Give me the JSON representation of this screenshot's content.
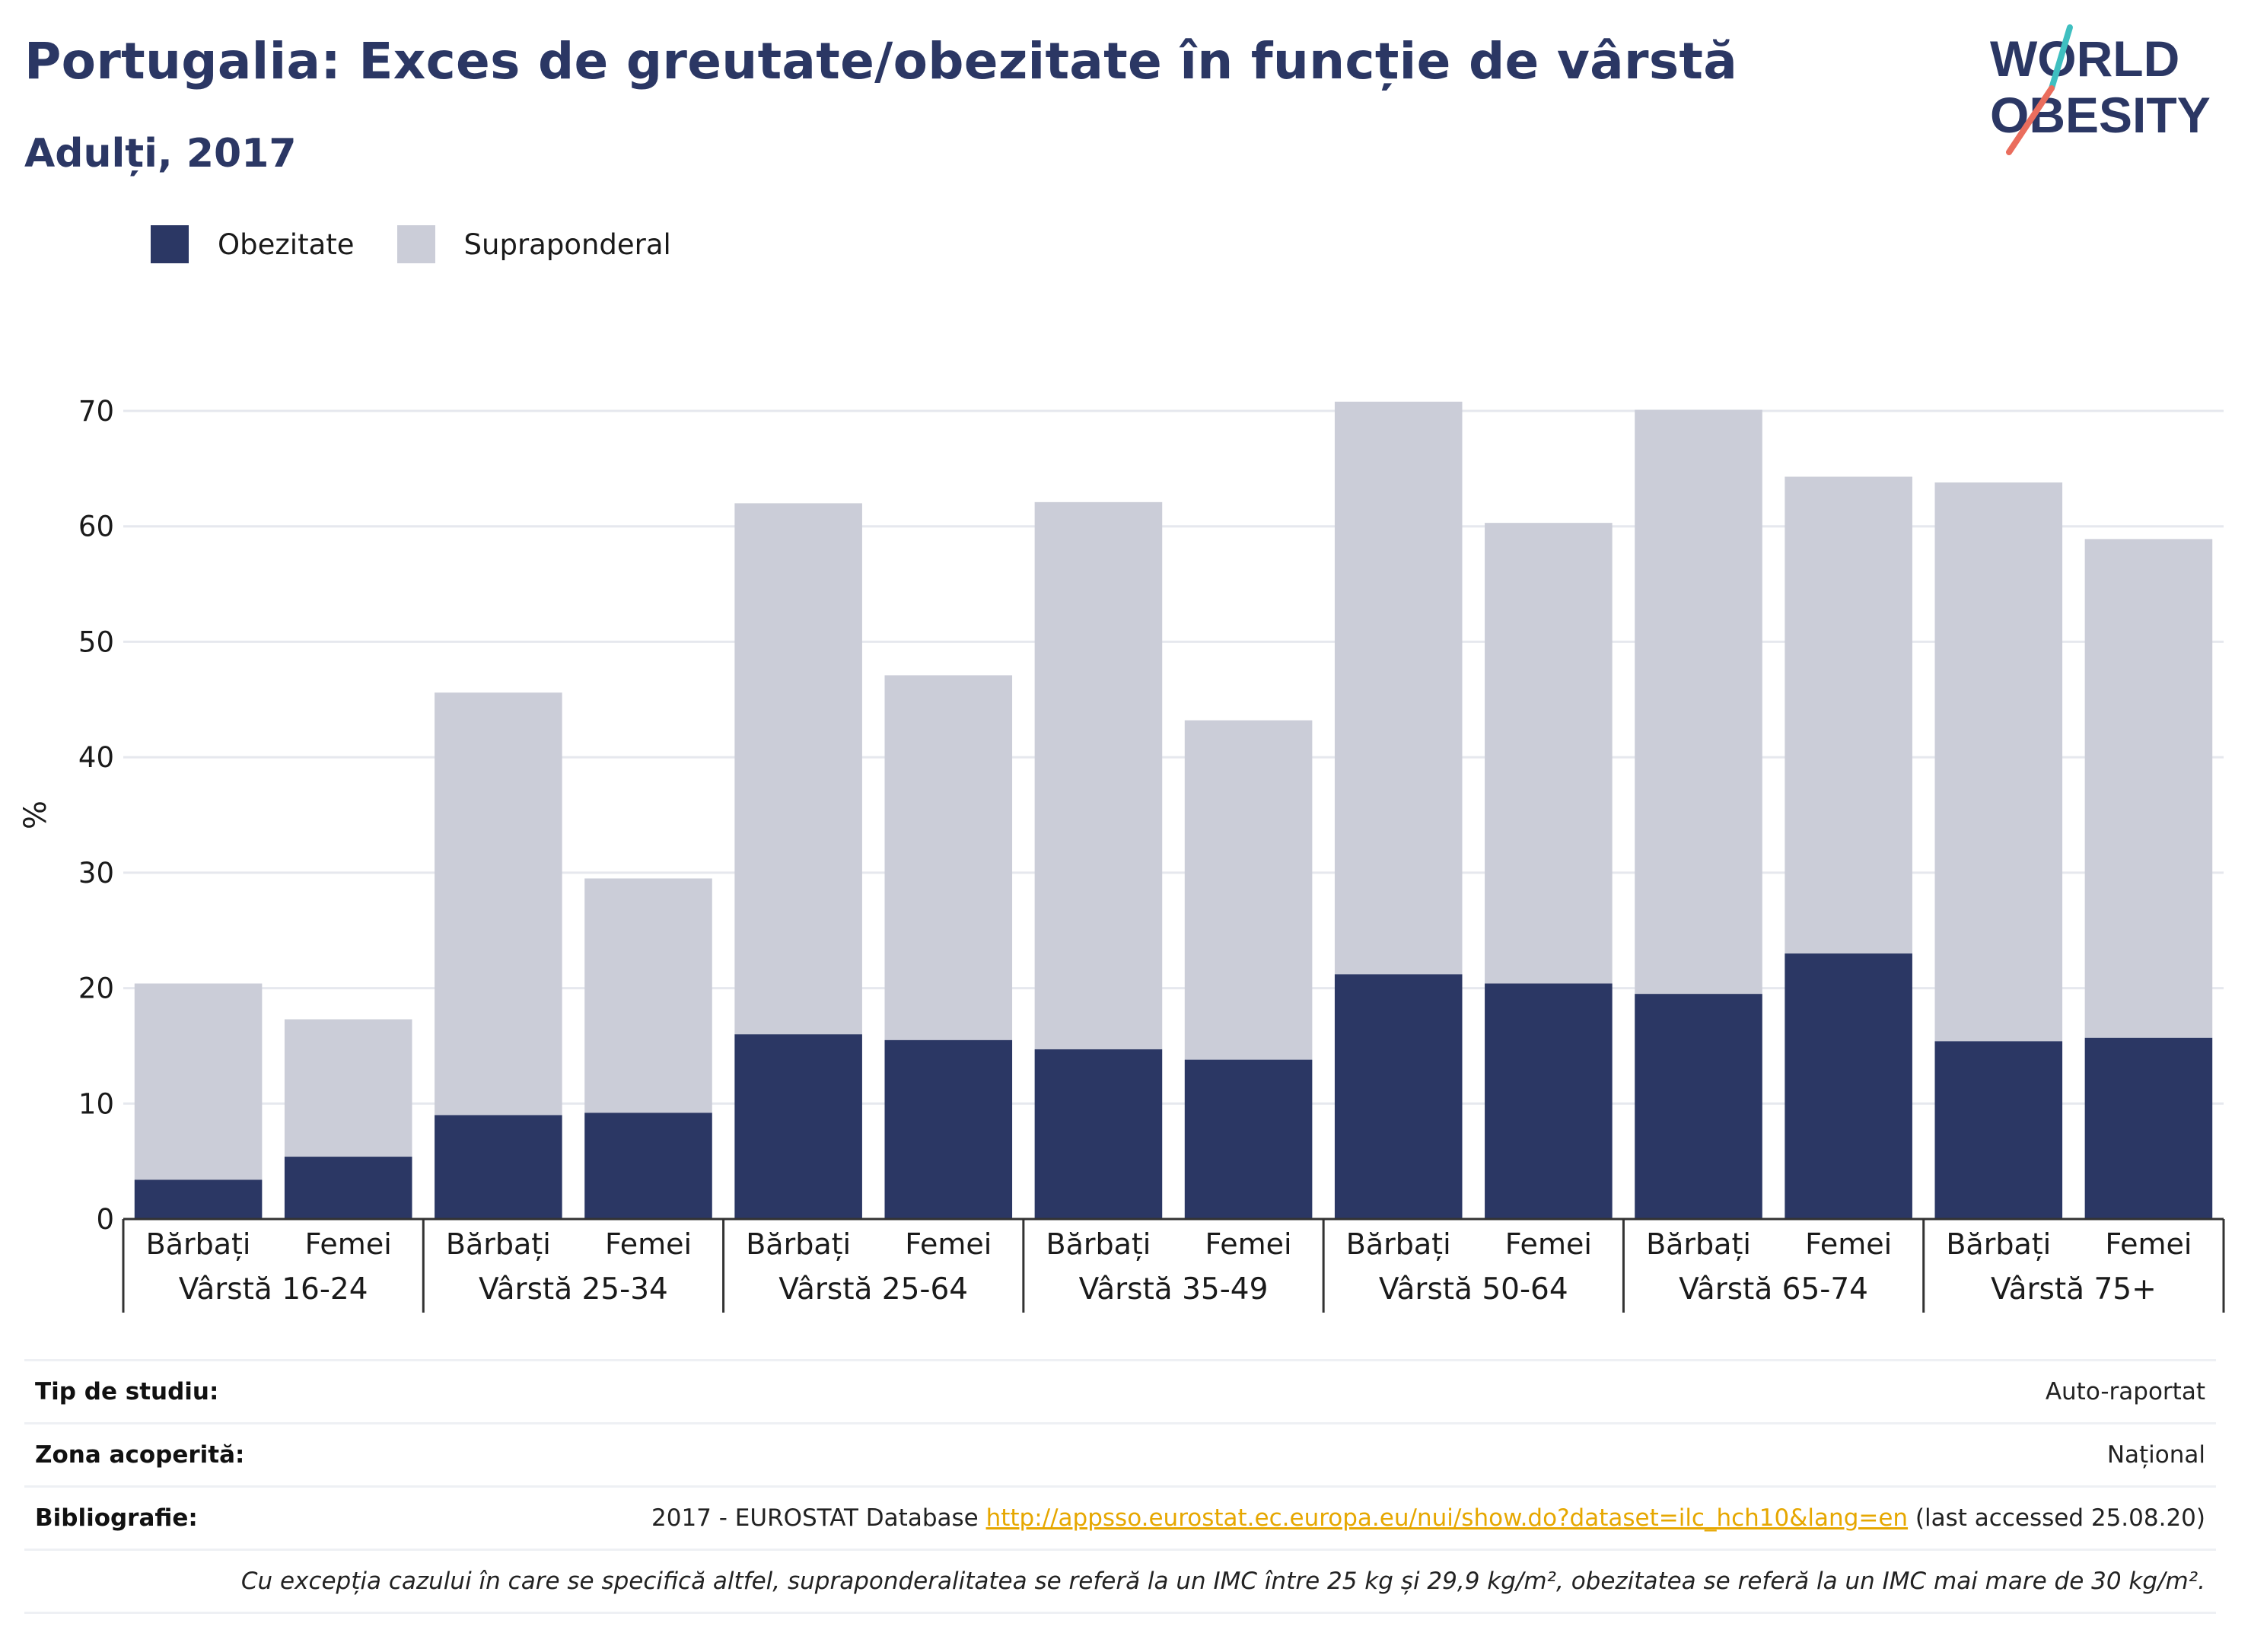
{
  "title": "Portugalia: Exces de greutate/obezitate în funcție de vârstă",
  "subtitle": "Adulți, 2017",
  "logo": {
    "line1": "WORLD",
    "line2": "OBESITY"
  },
  "colors": {
    "obesity": "#2b3764",
    "overweight": "#cbcdd8",
    "title": "#2b3764",
    "grid": "#e6e8ee",
    "link": "#e6a700"
  },
  "legend": [
    {
      "label": "Obezitate",
      "color": "#2b3764"
    },
    {
      "label": "Supraponderal",
      "color": "#cbcdd8"
    }
  ],
  "chart_data": {
    "type": "bar",
    "stacked": true,
    "ylabel": "%",
    "ylim": [
      0,
      70
    ],
    "yticks": [
      0,
      10,
      20,
      30,
      40,
      50,
      60,
      70
    ],
    "grid": true,
    "legend_position": "top-left",
    "groups": [
      "Vârstă 16-24",
      "Vârstă 25-34",
      "Vârstă 25-64",
      "Vârstă 35-49",
      "Vârstă 50-64",
      "Vârstă 65-74",
      "Vârstă 75+"
    ],
    "subcategories": [
      "Bărbați",
      "Femei"
    ],
    "categories": [
      "Bărbați",
      "Femei",
      "Bărbați",
      "Femei",
      "Bărbați",
      "Femei",
      "Bărbați",
      "Femei",
      "Bărbați",
      "Femei",
      "Bărbați",
      "Femei",
      "Bărbați",
      "Femei"
    ],
    "series": [
      {
        "name": "Obezitate",
        "values": [
          3.4,
          5.4,
          9.0,
          9.2,
          16.0,
          15.5,
          14.7,
          13.8,
          21.2,
          20.4,
          19.5,
          23.0,
          15.4,
          15.7
        ]
      },
      {
        "name": "Supraponderal",
        "values": [
          17.0,
          11.9,
          36.6,
          20.3,
          46.0,
          31.6,
          47.4,
          29.4,
          49.6,
          39.9,
          50.6,
          41.3,
          48.4,
          43.2
        ]
      }
    ]
  },
  "info": {
    "study_type_label": "Tip de studiu:",
    "study_type_value": "Auto-raportat",
    "coverage_label": "Zona acoperită:",
    "coverage_value": "Național",
    "bibliography_label": "Bibliografie:",
    "bibliography_prefix": "2017 - EUROSTAT Database",
    "bibliography_link": "http://appsso.eurostat.ec.europa.eu/nui/show.do?dataset=ilc_hch10&lang=en",
    "bibliography_suffix": "(last accessed 25.08.20)",
    "note": "Cu excepția cazului în care se specifică altfel, supraponderalitatea se referă la un IMC între 25 kg și 29,9 kg/m², obezitatea se referă la un IMC mai mare de 30 kg/m²."
  }
}
